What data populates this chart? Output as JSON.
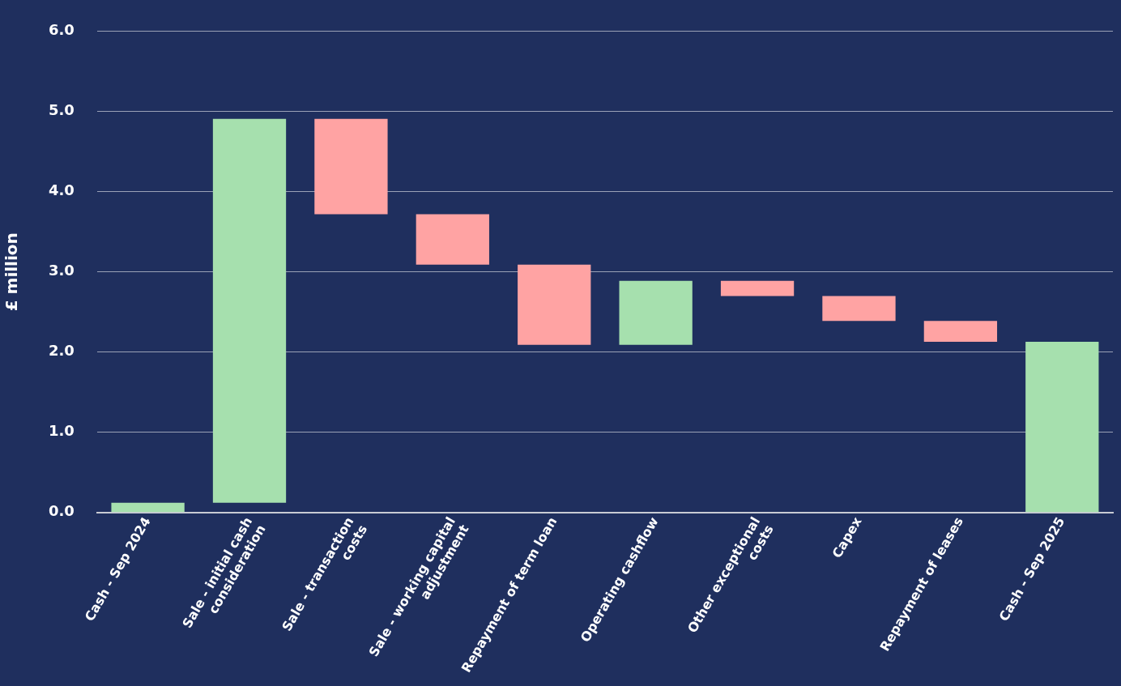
{
  "chart_data": {
    "type": "bar",
    "ylabel": "£ million",
    "categories": [
      "Cash - Sep 2024",
      "Sale - initial cash consideration",
      "Sale - transaction costs",
      "Sale - working capital adjustment",
      "Repayment of term loan",
      "Operating cashflow",
      "Other exceptional costs",
      "Capex",
      "Repayment of leases",
      "Cash - Sep 2025"
    ],
    "values": [
      0.12,
      4.79,
      -1.19,
      -0.63,
      -1.0,
      0.8,
      -0.19,
      -0.31,
      -0.26,
      2.13
    ],
    "base": [
      0,
      0.12,
      4.91,
      3.72,
      3.09,
      2.09,
      2.89,
      2.7,
      2.39,
      0
    ],
    "colors": [
      "#a6e0ae",
      "#a6e0ae",
      "#ffa3a3",
      "#ffa3a3",
      "#ffa3a3",
      "#a6e0ae",
      "#ffa3a3",
      "#ffa3a3",
      "#ffa3a3",
      "#a6e0ae"
    ],
    "ylim": [
      0,
      6
    ],
    "yticks": [
      {
        "value": 0,
        "label": "0.0"
      },
      {
        "value": 1,
        "label": "1.0"
      },
      {
        "value": 2,
        "label": "2.0"
      },
      {
        "value": 3,
        "label": "3.0"
      },
      {
        "value": 4,
        "label": "4.0"
      },
      {
        "value": 5,
        "label": "5.0"
      },
      {
        "value": 6,
        "label": "6.0"
      }
    ],
    "grid": "y",
    "legend": false
  }
}
